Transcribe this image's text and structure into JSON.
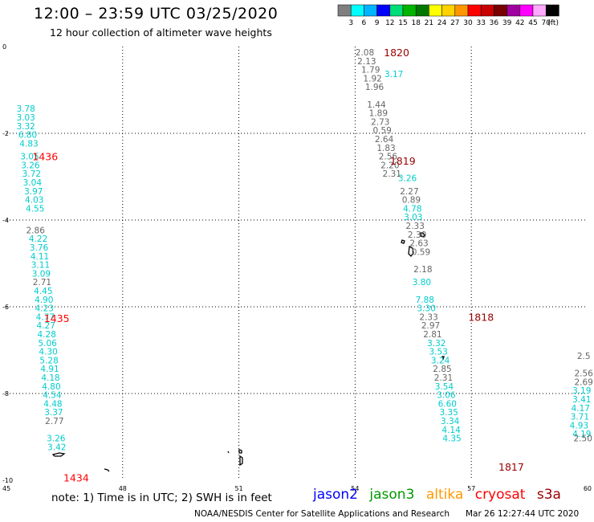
{
  "header": {
    "title": "12:00 – 23:59 UTC 03/25/2020",
    "subtitle": "12 hour collection of altimeter wave heights"
  },
  "colorbar": {
    "labels": [
      "3",
      "6",
      "9",
      "12",
      "15",
      "18",
      "21",
      "24",
      "27",
      "30",
      "33",
      "36",
      "39",
      "42",
      "45",
      "70"
    ],
    "unit": "(ft)",
    "colors": [
      "#7f7f7f",
      "#00ffff",
      "#00b4ff",
      "#0000ff",
      "#00dc78",
      "#00b400",
      "#007800",
      "#ffff00",
      "#ffd200",
      "#ff9600",
      "#ff0000",
      "#c80000",
      "#780000",
      "#a000a0",
      "#ff00ff",
      "#ffaaff",
      "#000000"
    ]
  },
  "footer": {
    "note": "note:  1) Time is in UTC; 2) SWH is in feet",
    "satellites": [
      {
        "name": "jason2",
        "color": "#0000ff"
      },
      {
        "name": "jason3",
        "color": "#009900"
      },
      {
        "name": "altika",
        "color": "#ff9900"
      },
      {
        "name": "cryosat",
        "color": "#ff0000"
      },
      {
        "name": "s3a",
        "color": "#990000"
      }
    ],
    "credit": "NOAA/NESDIS Center for Satellite Applications and Research",
    "timestamp": "Mar 26 12:27:44 UTC 2020"
  },
  "chart_data": {
    "type": "scatter",
    "xlim": [
      45,
      60
    ],
    "ylim": [
      -10,
      0
    ],
    "x_ticks": [
      "45",
      "48",
      "51",
      "54",
      "57",
      "60"
    ],
    "y_ticks": [
      "0",
      "-2",
      "-4",
      "-6",
      "-8",
      "-10"
    ],
    "grid": true,
    "colors": {
      "gray": "#666666",
      "cyan": "#00cccc"
    },
    "time_labels": [
      {
        "text": "1820",
        "x": 55.07,
        "y": -0.15,
        "color": "#990000"
      },
      {
        "text": "1819",
        "x": 55.23,
        "y": -2.65,
        "color": "#990000"
      },
      {
        "text": "1818",
        "x": 57.25,
        "y": -6.25,
        "color": "#990000"
      },
      {
        "text": "1817",
        "x": 58.03,
        "y": -9.7,
        "color": "#990000"
      },
      {
        "text": "1436",
        "x": 46.0,
        "y": -2.55,
        "color": "#ff0000"
      },
      {
        "text": "1435",
        "x": 46.3,
        "y": -6.28,
        "color": "#ff0000"
      },
      {
        "text": "1434",
        "x": 46.8,
        "y": -9.95,
        "color": "#ff0000"
      }
    ],
    "series": [
      {
        "color": "cyan",
        "points": [
          [
            "3.78",
            45.5,
            -1.43
          ],
          [
            "3.03",
            45.5,
            -1.63
          ],
          [
            "3.32",
            45.5,
            -1.83
          ],
          [
            "6.80",
            45.55,
            -2.03
          ],
          [
            "4.83",
            45.58,
            -2.23
          ],
          [
            "3.05",
            45.6,
            -2.53
          ],
          [
            "3.26",
            45.62,
            -2.73
          ],
          [
            "3.72",
            45.65,
            -2.93
          ],
          [
            "3.04",
            45.67,
            -3.13
          ],
          [
            "3.97",
            45.7,
            -3.33
          ],
          [
            "4.03",
            45.72,
            -3.53
          ],
          [
            "4.55",
            45.74,
            -3.73
          ],
          [
            "4.22",
            45.82,
            -4.43
          ],
          [
            "3.76",
            45.84,
            -4.63
          ],
          [
            "4.11",
            45.86,
            -4.83
          ],
          [
            "3.11",
            45.88,
            -5.03
          ],
          [
            "3.09",
            45.9,
            -5.23
          ],
          [
            "4.45",
            45.95,
            -5.63
          ],
          [
            "4.90",
            45.97,
            -5.83
          ],
          [
            "4.23",
            45.98,
            -6.03
          ],
          [
            "4.77",
            46.0,
            -6.23
          ],
          [
            "4.27",
            46.02,
            -6.43
          ],
          [
            "4.28",
            46.04,
            -6.63
          ],
          [
            "5.06",
            46.06,
            -6.83
          ],
          [
            "4.30",
            46.08,
            -7.03
          ],
          [
            "5.28",
            46.1,
            -7.23
          ],
          [
            "4.91",
            46.12,
            -7.43
          ],
          [
            "4.18",
            46.14,
            -7.63
          ],
          [
            "4.80",
            46.16,
            -7.83
          ],
          [
            "4.54",
            46.18,
            -8.03
          ],
          [
            "4.48",
            46.2,
            -8.23
          ],
          [
            "3.37",
            46.22,
            -8.43
          ],
          [
            "3.26",
            46.28,
            -9.03
          ],
          [
            "3.42",
            46.3,
            -9.23
          ],
          [
            "3.17",
            55.0,
            -0.63
          ],
          [
            "3.26",
            55.35,
            -3.03
          ],
          [
            "4.78",
            55.48,
            -3.73
          ],
          [
            "3.03",
            55.5,
            -3.93
          ],
          [
            "3.80",
            55.72,
            -5.43
          ],
          [
            "7.88",
            55.8,
            -5.83
          ],
          [
            "3.30",
            55.84,
            -6.03
          ],
          [
            "3.32",
            56.1,
            -6.83
          ],
          [
            "3.53",
            56.15,
            -7.03
          ],
          [
            "3.24",
            56.2,
            -7.23
          ],
          [
            "3.54",
            56.3,
            -7.83
          ],
          [
            "3.06",
            56.35,
            -8.03
          ],
          [
            "6.60",
            56.38,
            -8.23
          ],
          [
            "3.35",
            56.42,
            -8.43
          ],
          [
            "3.34",
            56.45,
            -8.63
          ],
          [
            "4.14",
            56.48,
            -8.83
          ],
          [
            "4.35",
            56.5,
            -9.03
          ],
          [
            "3.19",
            59.85,
            -7.93
          ],
          [
            "3.41",
            59.85,
            -8.13
          ],
          [
            "4.17",
            59.82,
            -8.33
          ],
          [
            "3.71",
            59.8,
            -8.53
          ],
          [
            "4.93",
            59.78,
            -8.73
          ],
          [
            "4.19",
            59.85,
            -8.93
          ]
        ]
      },
      {
        "color": "gray",
        "points": [
          [
            "2.86",
            45.75,
            -4.23
          ],
          [
            "2.71",
            45.92,
            -5.43
          ],
          [
            "2.77",
            46.24,
            -8.63
          ],
          [
            "2.08",
            54.25,
            -0.13
          ],
          [
            "2.13",
            54.3,
            -0.33
          ],
          [
            "1.79",
            54.4,
            -0.53
          ],
          [
            "1.92",
            54.45,
            -0.73
          ],
          [
            "1.96",
            54.5,
            -0.93
          ],
          [
            "1.44",
            54.55,
            -1.33
          ],
          [
            "1.89",
            54.6,
            -1.53
          ],
          [
            "2.73",
            54.65,
            -1.73
          ],
          [
            "0.59",
            54.7,
            -1.93
          ],
          [
            "2.64",
            54.75,
            -2.13
          ],
          [
            "1.83",
            54.8,
            -2.33
          ],
          [
            "2.56",
            54.85,
            -2.53
          ],
          [
            "2.20",
            54.9,
            -2.73
          ],
          [
            "2.31",
            54.95,
            -2.93
          ],
          [
            "2.27",
            55.4,
            -3.33
          ],
          [
            "0.89",
            55.45,
            -3.53
          ],
          [
            "2.33",
            55.55,
            -4.13
          ],
          [
            "2.30",
            55.6,
            -4.33
          ],
          [
            "2.63",
            55.65,
            -4.53
          ],
          [
            "0.59",
            55.7,
            -4.73
          ],
          [
            "2.18",
            55.75,
            -5.13
          ],
          [
            "2.33",
            55.9,
            -6.23
          ],
          [
            "2.97",
            55.95,
            -6.43
          ],
          [
            "2.81",
            56.0,
            -6.63
          ],
          [
            "2.85",
            56.25,
            -7.43
          ],
          [
            "2.31",
            56.28,
            -7.63
          ],
          [
            "2.5",
            59.9,
            -7.13
          ],
          [
            "2.56",
            59.9,
            -7.53
          ],
          [
            "2.69",
            59.9,
            -7.73
          ],
          [
            "2.50",
            59.88,
            -9.03
          ]
        ]
      }
    ]
  }
}
